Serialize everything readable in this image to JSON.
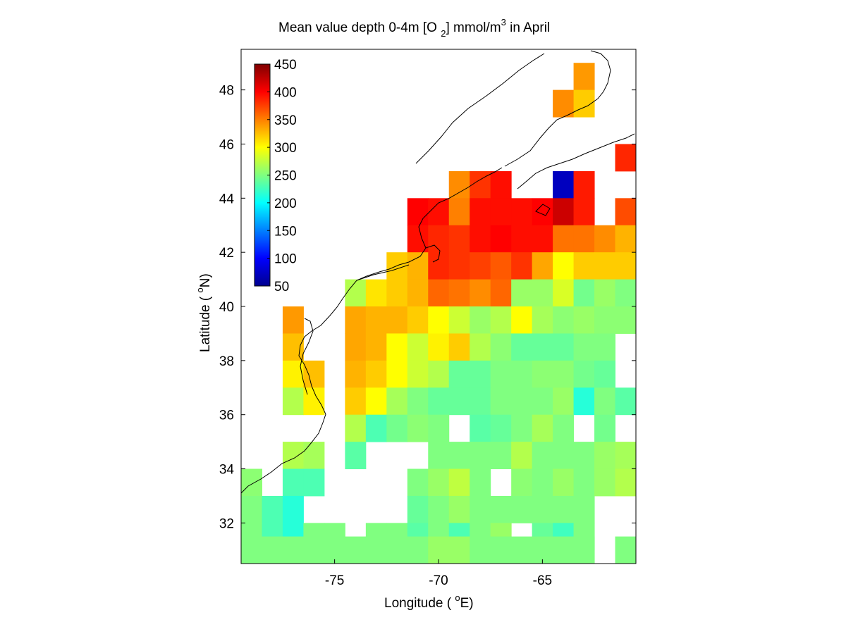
{
  "figure": {
    "title_main": "Mean value depth 0-4m [O ",
    "title_sub": "2",
    "title_unit": "] mmol/m",
    "title_sup": "3",
    "title_end": " in April",
    "xlabel_main": "Longitude ( ",
    "xlabel_sup": "o",
    "xlabel_end": "E)",
    "ylabel_main": "Latitude ( ",
    "ylabel_sup": "o",
    "ylabel_end": "N)"
  },
  "colorbar": {
    "ticks": [
      "450",
      "400",
      "350",
      "300",
      "250",
      "200",
      "150",
      "100",
      "50"
    ],
    "min": 50,
    "max": 450,
    "colormap": "jet"
  },
  "chart_data": {
    "type": "heatmap",
    "xlim": [
      -79.5,
      -60.5
    ],
    "ylim": [
      30.5,
      49.5
    ],
    "x_ticks": [
      -75,
      -70,
      -65
    ],
    "x_tick_labels": [
      "-75",
      "-70",
      "-65"
    ],
    "y_ticks": [
      32,
      34,
      36,
      38,
      40,
      42,
      44,
      46,
      48
    ],
    "y_tick_labels": [
      "32",
      "34",
      "36",
      "38",
      "40",
      "42",
      "44",
      "46",
      "48"
    ],
    "cell_deg": 1,
    "grid": false,
    "colorbar_position": "top-left inside",
    "note": "rows listed from north (lat 48.5) to south (lat 31); cols from lon -79 to -61; null = no data",
    "lat_centers": [
      48.5,
      47.5,
      46.5,
      45.5,
      44.5,
      43.5,
      42.5,
      41.5,
      40.5,
      39.5,
      38.5,
      37.5,
      36.5,
      35.5,
      34.5,
      33.5,
      32.5,
      31.5,
      31.0
    ],
    "lon_centers": [
      -79,
      -78,
      -77,
      -76,
      -75,
      -74,
      -73,
      -72,
      -71,
      -70,
      -69,
      -68,
      -67,
      -66,
      -65,
      -64,
      -63,
      -62,
      -61
    ],
    "values": [
      [
        null,
        null,
        null,
        null,
        null,
        null,
        null,
        null,
        null,
        null,
        null,
        null,
        null,
        null,
        null,
        null,
        340,
        null,
        null
      ],
      [
        null,
        null,
        null,
        null,
        null,
        null,
        null,
        null,
        null,
        null,
        null,
        null,
        null,
        null,
        null,
        345,
        320,
        null,
        null
      ],
      [
        null,
        null,
        null,
        null,
        null,
        null,
        null,
        null,
        null,
        null,
        null,
        null,
        null,
        null,
        null,
        null,
        null,
        null,
        null
      ],
      [
        null,
        null,
        null,
        null,
        null,
        null,
        null,
        null,
        null,
        null,
        null,
        null,
        null,
        null,
        null,
        null,
        null,
        null,
        385
      ],
      [
        null,
        null,
        null,
        null,
        null,
        null,
        null,
        null,
        null,
        null,
        345,
        380,
        395,
        null,
        null,
        75,
        390,
        null,
        null
      ],
      [
        null,
        null,
        null,
        null,
        null,
        null,
        null,
        null,
        400,
        395,
        350,
        395,
        395,
        395,
        400,
        420,
        390,
        null,
        370
      ],
      [
        null,
        null,
        null,
        null,
        null,
        null,
        null,
        null,
        395,
        385,
        380,
        395,
        400,
        395,
        395,
        355,
        355,
        345,
        330
      ],
      [
        null,
        null,
        null,
        null,
        null,
        null,
        null,
        320,
        330,
        385,
        380,
        375,
        365,
        380,
        335,
        300,
        320,
        320,
        320
      ],
      [
        null,
        null,
        null,
        null,
        null,
        270,
        310,
        320,
        330,
        360,
        355,
        345,
        360,
        260,
        260,
        285,
        245,
        260,
        250
      ],
      [
        null,
        null,
        340,
        null,
        null,
        335,
        330,
        330,
        320,
        300,
        280,
        260,
        270,
        300,
        265,
        255,
        260,
        255,
        255
      ],
      [
        null,
        null,
        325,
        null,
        null,
        335,
        330,
        300,
        280,
        305,
        320,
        270,
        255,
        240,
        240,
        240,
        250,
        250,
        null
      ],
      [
        null,
        null,
        305,
        325,
        null,
        330,
        320,
        300,
        280,
        270,
        240,
        240,
        250,
        250,
        255,
        255,
        245,
        240,
        null
      ],
      [
        null,
        null,
        270,
        305,
        null,
        320,
        300,
        265,
        250,
        240,
        240,
        240,
        250,
        250,
        250,
        260,
        215,
        250,
        235
      ],
      [
        null,
        null,
        null,
        null,
        null,
        270,
        230,
        245,
        255,
        250,
        null,
        235,
        240,
        250,
        265,
        250,
        null,
        245,
        null
      ],
      [
        null,
        null,
        270,
        265,
        null,
        235,
        null,
        null,
        null,
        250,
        250,
        250,
        250,
        270,
        250,
        250,
        250,
        260,
        265
      ],
      [
        255,
        null,
        230,
        230,
        null,
        null,
        null,
        null,
        250,
        260,
        275,
        250,
        null,
        255,
        250,
        260,
        250,
        260,
        270
      ],
      [
        250,
        230,
        215,
        null,
        null,
        null,
        null,
        null,
        240,
        250,
        260,
        250,
        250,
        250,
        250,
        250,
        250,
        null,
        null
      ],
      [
        250,
        230,
        215,
        250,
        250,
        null,
        250,
        250,
        235,
        250,
        230,
        250,
        260,
        null,
        240,
        225,
        250,
        null,
        null
      ],
      [
        250,
        250,
        250,
        250,
        250,
        250,
        250,
        250,
        250,
        260,
        260,
        250,
        250,
        250,
        250,
        250,
        250,
        null,
        250
      ]
    ]
  }
}
